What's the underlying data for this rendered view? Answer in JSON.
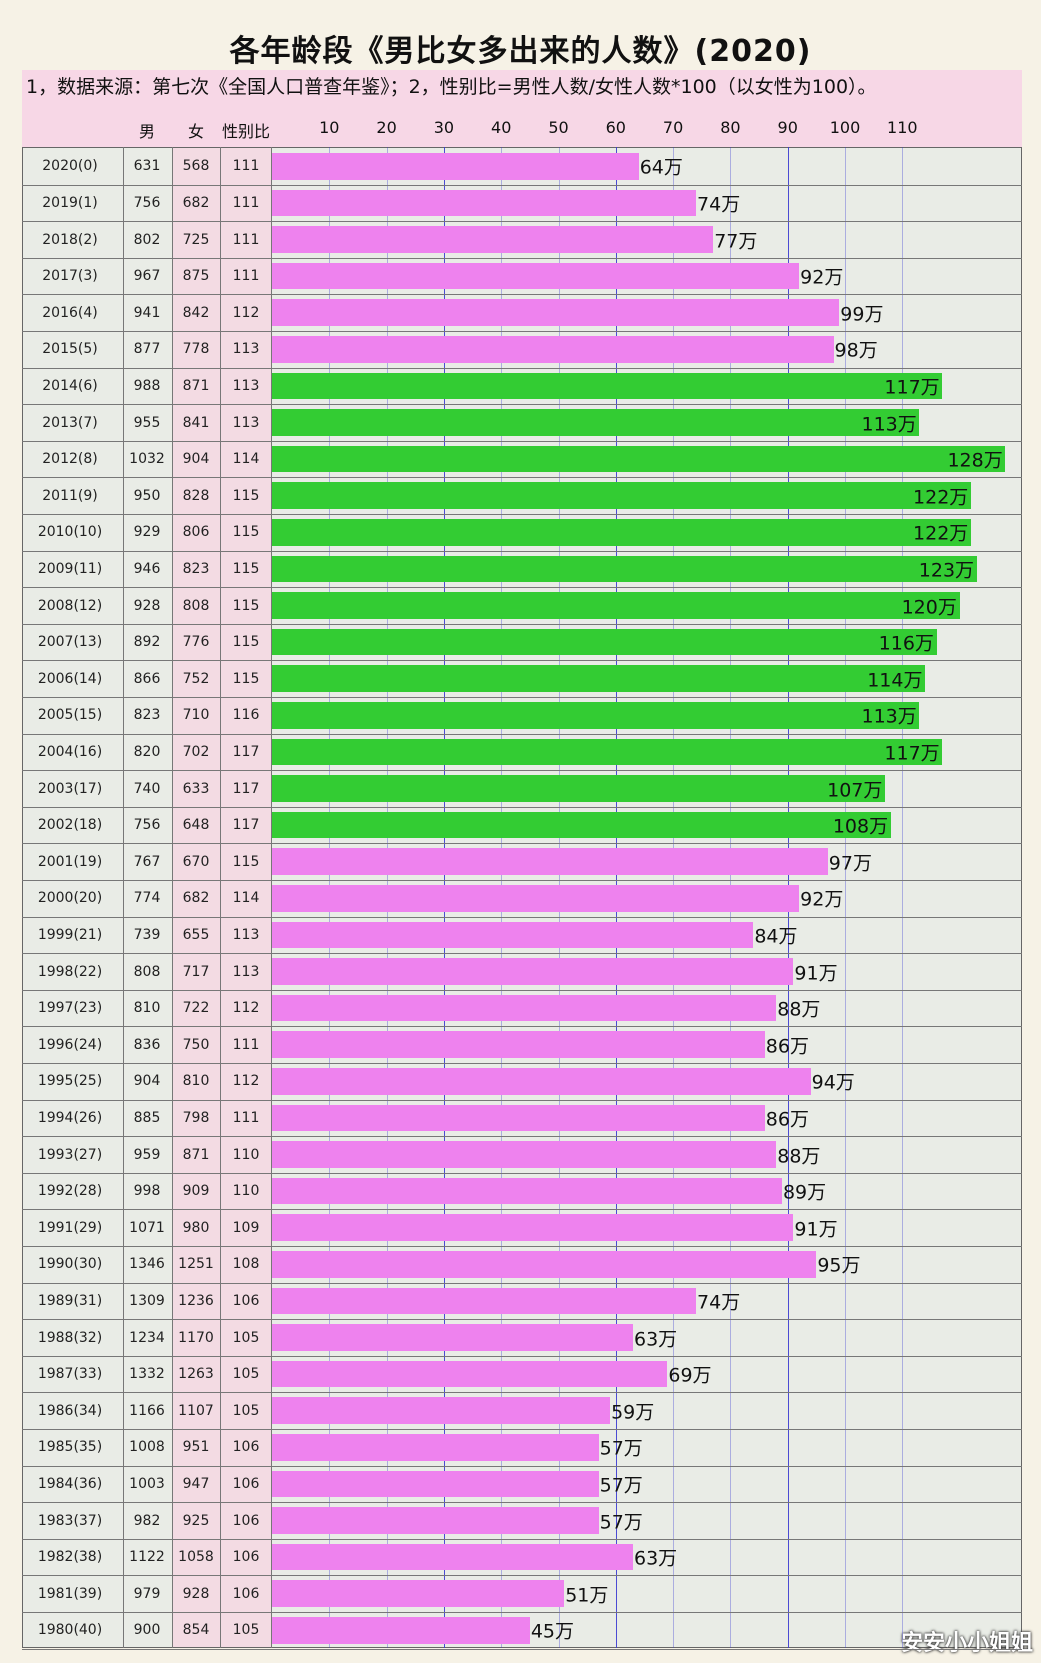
{
  "title": "各年龄段《男比女多出来的人数》(2020)",
  "note": "1，数据来源：第七次《全国人口普查年鉴》；2，性别比=男性人数/女性人数*100（以女性为100）。",
  "headers": {
    "male": "男",
    "female": "女",
    "ratio": "性别比"
  },
  "watermark": "安安小小姐姐",
  "colors": {
    "pink": "#ee82ee",
    "green": "#33cc33",
    "header": "#f7d7e6",
    "grid": "#3a3ad0"
  },
  "chart_data": {
    "type": "bar",
    "orientation": "horizontal",
    "x_ticks": [
      10,
      20,
      30,
      40,
      50,
      60,
      70,
      80,
      90,
      100,
      110
    ],
    "xlim": [
      0,
      130
    ],
    "unit_suffix": "万",
    "rows": [
      {
        "year": "2020(0)",
        "male": "631",
        "female": "568",
        "ratio": "111",
        "value": 64,
        "label": "64万",
        "color": "pink"
      },
      {
        "year": "2019(1)",
        "male": "756",
        "female": "682",
        "ratio": "111",
        "value": 74,
        "label": "74万",
        "color": "pink"
      },
      {
        "year": "2018(2)",
        "male": "802",
        "female": "725",
        "ratio": "111",
        "value": 77,
        "label": "77万",
        "color": "pink"
      },
      {
        "year": "2017(3)",
        "male": "967",
        "female": "875",
        "ratio": "111",
        "value": 92,
        "label": "92万",
        "color": "pink"
      },
      {
        "year": "2016(4)",
        "male": "941",
        "female": "842",
        "ratio": "112",
        "value": 99,
        "label": "99万",
        "color": "pink"
      },
      {
        "year": "2015(5)",
        "male": "877",
        "female": "778",
        "ratio": "113",
        "value": 98,
        "label": "98万",
        "color": "pink"
      },
      {
        "year": "2014(6)",
        "male": "988",
        "female": "871",
        "ratio": "113",
        "value": 117,
        "label": "117万",
        "color": "green"
      },
      {
        "year": "2013(7)",
        "male": "955",
        "female": "841",
        "ratio": "113",
        "value": 113,
        "label": "113万",
        "color": "green"
      },
      {
        "year": "2012(8)",
        "male": "1032",
        "female": "904",
        "ratio": "114",
        "value": 128,
        "label": "128万",
        "color": "green"
      },
      {
        "year": "2011(9)",
        "male": "950",
        "female": "828",
        "ratio": "115",
        "value": 122,
        "label": "122万",
        "color": "green"
      },
      {
        "year": "2010(10)",
        "male": "929",
        "female": "806",
        "ratio": "115",
        "value": 122,
        "label": "122万",
        "color": "green"
      },
      {
        "year": "2009(11)",
        "male": "946",
        "female": "823",
        "ratio": "115",
        "value": 123,
        "label": "123万",
        "color": "green"
      },
      {
        "year": "2008(12)",
        "male": "928",
        "female": "808",
        "ratio": "115",
        "value": 120,
        "label": "120万",
        "color": "green"
      },
      {
        "year": "2007(13)",
        "male": "892",
        "female": "776",
        "ratio": "115",
        "value": 116,
        "label": "116万",
        "color": "green"
      },
      {
        "year": "2006(14)",
        "male": "866",
        "female": "752",
        "ratio": "115",
        "value": 114,
        "label": "114万",
        "color": "green"
      },
      {
        "year": "2005(15)",
        "male": "823",
        "female": "710",
        "ratio": "116",
        "value": 113,
        "label": "113万",
        "color": "green"
      },
      {
        "year": "2004(16)",
        "male": "820",
        "female": "702",
        "ratio": "117",
        "value": 117,
        "label": "117万",
        "color": "green"
      },
      {
        "year": "2003(17)",
        "male": "740",
        "female": "633",
        "ratio": "117",
        "value": 107,
        "label": "107万",
        "color": "green"
      },
      {
        "year": "2002(18)",
        "male": "756",
        "female": "648",
        "ratio": "117",
        "value": 108,
        "label": "108万",
        "color": "green"
      },
      {
        "year": "2001(19)",
        "male": "767",
        "female": "670",
        "ratio": "115",
        "value": 97,
        "label": "97万",
        "color": "pink"
      },
      {
        "year": "2000(20)",
        "male": "774",
        "female": "682",
        "ratio": "114",
        "value": 92,
        "label": "92万",
        "color": "pink"
      },
      {
        "year": "1999(21)",
        "male": "739",
        "female": "655",
        "ratio": "113",
        "value": 84,
        "label": "84万",
        "color": "pink"
      },
      {
        "year": "1998(22)",
        "male": "808",
        "female": "717",
        "ratio": "113",
        "value": 91,
        "label": "91万",
        "color": "pink"
      },
      {
        "year": "1997(23)",
        "male": "810",
        "female": "722",
        "ratio": "112",
        "value": 88,
        "label": "88万",
        "color": "pink"
      },
      {
        "year": "1996(24)",
        "male": "836",
        "female": "750",
        "ratio": "111",
        "value": 86,
        "label": "86万",
        "color": "pink"
      },
      {
        "year": "1995(25)",
        "male": "904",
        "female": "810",
        "ratio": "112",
        "value": 94,
        "label": "94万",
        "color": "pink"
      },
      {
        "year": "1994(26)",
        "male": "885",
        "female": "798",
        "ratio": "111",
        "value": 86,
        "label": "86万",
        "color": "pink"
      },
      {
        "year": "1993(27)",
        "male": "959",
        "female": "871",
        "ratio": "110",
        "value": 88,
        "label": "88万",
        "color": "pink"
      },
      {
        "year": "1992(28)",
        "male": "998",
        "female": "909",
        "ratio": "110",
        "value": 89,
        "label": "89万",
        "color": "pink"
      },
      {
        "year": "1991(29)",
        "male": "1071",
        "female": "980",
        "ratio": "109",
        "value": 91,
        "label": "91万",
        "color": "pink"
      },
      {
        "year": "1990(30)",
        "male": "1346",
        "female": "1251",
        "ratio": "108",
        "value": 95,
        "label": "95万",
        "color": "pink"
      },
      {
        "year": "1989(31)",
        "male": "1309",
        "female": "1236",
        "ratio": "106",
        "value": 74,
        "label": "74万",
        "color": "pink"
      },
      {
        "year": "1988(32)",
        "male": "1234",
        "female": "1170",
        "ratio": "105",
        "value": 63,
        "label": "63万",
        "color": "pink"
      },
      {
        "year": "1987(33)",
        "male": "1332",
        "female": "1263",
        "ratio": "105",
        "value": 69,
        "label": "69万",
        "color": "pink"
      },
      {
        "year": "1986(34)",
        "male": "1166",
        "female": "1107",
        "ratio": "105",
        "value": 59,
        "label": "59万",
        "color": "pink"
      },
      {
        "year": "1985(35)",
        "male": "1008",
        "female": "951",
        "ratio": "106",
        "value": 57,
        "label": "57万",
        "color": "pink"
      },
      {
        "year": "1984(36)",
        "male": "1003",
        "female": "947",
        "ratio": "106",
        "value": 57,
        "label": "57万",
        "color": "pink"
      },
      {
        "year": "1983(37)",
        "male": "982",
        "female": "925",
        "ratio": "106",
        "value": 57,
        "label": "57万",
        "color": "pink"
      },
      {
        "year": "1982(38)",
        "male": "1122",
        "female": "1058",
        "ratio": "106",
        "value": 63,
        "label": "63万",
        "color": "pink"
      },
      {
        "year": "1981(39)",
        "male": "979",
        "female": "928",
        "ratio": "106",
        "value": 51,
        "label": "51万",
        "color": "pink"
      },
      {
        "year": "1980(40)",
        "male": "900",
        "female": "854",
        "ratio": "105",
        "value": 45,
        "label": "45万",
        "color": "pink"
      }
    ]
  }
}
